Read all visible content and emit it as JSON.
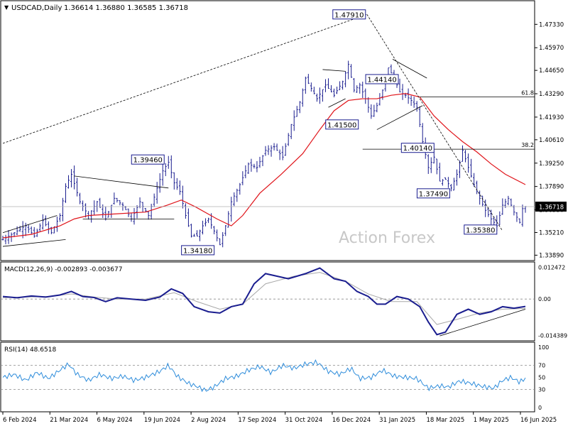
{
  "header": {
    "symbol": "USDCAD,Daily",
    "ohlc": "1.36614 1.36880 1.36585 1.36718"
  },
  "watermark": "Action Forex",
  "colors": {
    "candle": "#1a1d8f",
    "ma": "#e0151b",
    "macd": "#1a1d8f",
    "macd_signal": "#a8a8a8",
    "rsi": "#2f8ddb",
    "grid": "#8a8a8a",
    "label_border": "#1a1d8f"
  },
  "chart_data": [
    {
      "type": "candlestick",
      "panel": "price",
      "title": "USDCAD,Daily",
      "x_tick_labels": [
        "6 Feb 2024",
        "21 Mar 2024",
        "6 May 2024",
        "19 Jun 2024",
        "2 Aug 2024",
        "17 Sep 2024",
        "31 Oct 2024",
        "16 Dec 2024",
        "31 Jan 2025",
        "18 Mar 2025",
        "1 May 2025",
        "16 Jun 2025"
      ],
      "y_tick_labels": [
        "1.47330",
        "1.45970",
        "1.44650",
        "1.43290",
        "1.41930",
        "1.40610",
        "1.39250",
        "1.37890",
        "1.36530",
        "1.35210",
        "1.33890"
      ],
      "ylim": [
        1.337,
        1.485
      ],
      "last_price": "1.36718",
      "close_path": [
        [
          0,
          1.348
        ],
        [
          8,
          1.352
        ],
        [
          16,
          1.356
        ],
        [
          22,
          1.35
        ],
        [
          28,
          1.359
        ],
        [
          34,
          1.352
        ],
        [
          40,
          1.362
        ],
        [
          44,
          1.379
        ],
        [
          48,
          1.386
        ],
        [
          54,
          1.37
        ],
        [
          60,
          1.362
        ],
        [
          66,
          1.37
        ],
        [
          72,
          1.36
        ],
        [
          78,
          1.372
        ],
        [
          84,
          1.368
        ],
        [
          90,
          1.36
        ],
        [
          96,
          1.37
        ],
        [
          102,
          1.362
        ],
        [
          108,
          1.378
        ],
        [
          112,
          1.388
        ],
        [
          116,
          1.393
        ],
        [
          120,
          1.381
        ],
        [
          124,
          1.376
        ],
        [
          128,
          1.362
        ],
        [
          132,
          1.35
        ],
        [
          136,
          1.35
        ],
        [
          140,
          1.356
        ],
        [
          144,
          1.36
        ],
        [
          148,
          1.353
        ],
        [
          152,
          1.345
        ],
        [
          156,
          1.356
        ],
        [
          160,
          1.37
        ],
        [
          166,
          1.38
        ],
        [
          172,
          1.392
        ],
        [
          178,
          1.39
        ],
        [
          184,
          1.4
        ],
        [
          190,
          1.402
        ],
        [
          196,
          1.396
        ],
        [
          202,
          1.415
        ],
        [
          208,
          1.428
        ],
        [
          212,
          1.442
        ],
        [
          216,
          1.436
        ],
        [
          220,
          1.43
        ],
        [
          226,
          1.438
        ],
        [
          232,
          1.432
        ],
        [
          238,
          1.44
        ],
        [
          242,
          1.45
        ],
        [
          246,
          1.435
        ],
        [
          250,
          1.438
        ],
        [
          254,
          1.43
        ],
        [
          258,
          1.42
        ],
        [
          262,
          1.426
        ],
        [
          266,
          1.435
        ],
        [
          270,
          1.448
        ],
        [
          274,
          1.442
        ],
        [
          278,
          1.434
        ],
        [
          282,
          1.432
        ],
        [
          286,
          1.429
        ],
        [
          290,
          1.425
        ],
        [
          294,
          1.405
        ],
        [
          298,
          1.39
        ],
        [
          302,
          1.396
        ],
        [
          306,
          1.382
        ],
        [
          310,
          1.383
        ],
        [
          314,
          1.378
        ],
        [
          318,
          1.386
        ],
        [
          322,
          1.4
        ],
        [
          326,
          1.39
        ],
        [
          330,
          1.38
        ],
        [
          334,
          1.372
        ],
        [
          338,
          1.365
        ],
        [
          342,
          1.36
        ],
        [
          346,
          1.356
        ],
        [
          350,
          1.368
        ],
        [
          354,
          1.372
        ],
        [
          358,
          1.364
        ],
        [
          362,
          1.358
        ],
        [
          364,
          1.366
        ],
        [
          366,
          1.3672
        ]
      ],
      "moving_average": [
        [
          0,
          1.349
        ],
        [
          20,
          1.351
        ],
        [
          40,
          1.356
        ],
        [
          50,
          1.36
        ],
        [
          60,
          1.362
        ],
        [
          80,
          1.363
        ],
        [
          100,
          1.364
        ],
        [
          115,
          1.368
        ],
        [
          125,
          1.371
        ],
        [
          135,
          1.367
        ],
        [
          150,
          1.36
        ],
        [
          160,
          1.356
        ],
        [
          168,
          1.362
        ],
        [
          180,
          1.375
        ],
        [
          195,
          1.386
        ],
        [
          210,
          1.398
        ],
        [
          222,
          1.412
        ],
        [
          232,
          1.423
        ],
        [
          242,
          1.429
        ],
        [
          252,
          1.43
        ],
        [
          262,
          1.43
        ],
        [
          272,
          1.432
        ],
        [
          282,
          1.433
        ],
        [
          292,
          1.431
        ],
        [
          302,
          1.42
        ],
        [
          312,
          1.412
        ],
        [
          322,
          1.405
        ],
        [
          332,
          1.399
        ],
        [
          342,
          1.392
        ],
        [
          352,
          1.386
        ],
        [
          366,
          1.38
        ]
      ],
      "annotations": [
        {
          "label": "1.47910",
          "x": 255,
          "price": 1.4791
        },
        {
          "label": "1.44140",
          "x": 278,
          "price": 1.4414
        },
        {
          "label": "1.41500",
          "x": 250,
          "price": 1.415
        },
        {
          "label": "1.40140",
          "x": 303,
          "price": 1.4014
        },
        {
          "label": "1.39460",
          "x": 114,
          "price": 1.3946
        },
        {
          "label": "1.37490",
          "x": 314,
          "price": 1.3749
        },
        {
          "label": "1.35380",
          "x": 347,
          "price": 1.3538
        },
        {
          "label": "1.34180",
          "x": 149,
          "price": 1.3418
        }
      ],
      "fib_levels": [
        {
          "label": "61.8",
          "price": 1.431,
          "x_start": 292
        },
        {
          "label": "38.2",
          "price": 1.4006,
          "x_start": 252
        }
      ]
    },
    {
      "type": "line",
      "panel": "macd",
      "title": "MACD(12,26,9) -0.002893 -0.003677",
      "y_tick_labels": [
        "0.012472",
        "0.00",
        "-0.014389"
      ],
      "ylim": [
        -0.0153,
        0.0129
      ],
      "series": [
        {
          "values": [
            [
              0,
              0.001
            ],
            [
              10,
              0.0005
            ],
            [
              20,
              0.0012
            ],
            [
              30,
              0.0008
            ],
            [
              40,
              0.0016
            ],
            [
              48,
              0.003
            ],
            [
              56,
              0.001
            ],
            [
              64,
              0.0006
            ],
            [
              72,
              -0.001
            ],
            [
              80,
              0.0005
            ],
            [
              90,
              0.0
            ],
            [
              100,
              -0.0005
            ],
            [
              110,
              0.0008
            ],
            [
              118,
              0.004
            ],
            [
              126,
              0.0022
            ],
            [
              134,
              -0.003
            ],
            [
              144,
              -0.005
            ],
            [
              152,
              -0.0055
            ],
            [
              160,
              -0.003
            ],
            [
              168,
              -0.002
            ],
            [
              176,
              0.006
            ],
            [
              184,
              0.01
            ],
            [
              192,
              0.009
            ],
            [
              200,
              0.008
            ],
            [
              212,
              0.01
            ],
            [
              222,
              0.0122
            ],
            [
              232,
              0.008
            ],
            [
              240,
              0.007
            ],
            [
              248,
              0.003
            ],
            [
              256,
              0.001
            ],
            [
              262,
              -0.002
            ],
            [
              268,
              -0.002
            ],
            [
              276,
              0.001
            ],
            [
              284,
              0.0
            ],
            [
              292,
              -0.003
            ],
            [
              298,
              -0.009
            ],
            [
              304,
              -0.014
            ],
            [
              310,
              -0.013
            ],
            [
              318,
              -0.006
            ],
            [
              326,
              -0.004
            ],
            [
              334,
              -0.006
            ],
            [
              342,
              -0.005
            ],
            [
              350,
              -0.003
            ],
            [
              358,
              -0.0036
            ],
            [
              366,
              -0.0029
            ]
          ]
        },
        {
          "values": [
            [
              0,
              0.0005
            ],
            [
              16,
              0.0008
            ],
            [
              32,
              0.001
            ],
            [
              48,
              0.002
            ],
            [
              64,
              0.0008
            ],
            [
              80,
              0.0
            ],
            [
              100,
              0.0
            ],
            [
              120,
              0.0025
            ],
            [
              136,
              -0.001
            ],
            [
              152,
              -0.004
            ],
            [
              168,
              -0.002
            ],
            [
              184,
              0.006
            ],
            [
              204,
              0.009
            ],
            [
              222,
              0.0105
            ],
            [
              240,
              0.007
            ],
            [
              256,
              0.002
            ],
            [
              272,
              -0.001
            ],
            [
              290,
              -0.001
            ],
            [
              304,
              -0.01
            ],
            [
              318,
              -0.008
            ],
            [
              334,
              -0.0055
            ],
            [
              350,
              -0.004
            ],
            [
              366,
              -0.0037
            ]
          ]
        }
      ]
    },
    {
      "type": "line",
      "panel": "rsi",
      "title": "RSI(14) 48.6518",
      "y_tick_labels": [
        "100",
        "70",
        "50",
        "30",
        "0"
      ],
      "ylim": [
        0,
        100
      ],
      "values": [
        [
          0,
          50
        ],
        [
          8,
          55
        ],
        [
          16,
          45
        ],
        [
          24,
          58
        ],
        [
          32,
          48
        ],
        [
          40,
          62
        ],
        [
          46,
          72
        ],
        [
          52,
          55
        ],
        [
          60,
          45
        ],
        [
          68,
          55
        ],
        [
          76,
          48
        ],
        [
          84,
          52
        ],
        [
          92,
          45
        ],
        [
          100,
          50
        ],
        [
          110,
          60
        ],
        [
          116,
          70
        ],
        [
          122,
          52
        ],
        [
          130,
          40
        ],
        [
          136,
          35
        ],
        [
          142,
          28
        ],
        [
          148,
          34
        ],
        [
          156,
          48
        ],
        [
          164,
          52
        ],
        [
          172,
          62
        ],
        [
          180,
          68
        ],
        [
          188,
          58
        ],
        [
          196,
          70
        ],
        [
          204,
          65
        ],
        [
          212,
          72
        ],
        [
          220,
          75
        ],
        [
          228,
          60
        ],
        [
          236,
          55
        ],
        [
          244,
          65
        ],
        [
          250,
          48
        ],
        [
          258,
          50
        ],
        [
          266,
          62
        ],
        [
          274,
          52
        ],
        [
          282,
          50
        ],
        [
          290,
          48
        ],
        [
          298,
          32
        ],
        [
          306,
          36
        ],
        [
          312,
          34
        ],
        [
          320,
          44
        ],
        [
          328,
          40
        ],
        [
          336,
          35
        ],
        [
          344,
          32
        ],
        [
          350,
          45
        ],
        [
          356,
          50
        ],
        [
          362,
          42
        ],
        [
          366,
          48.65
        ]
      ]
    }
  ]
}
